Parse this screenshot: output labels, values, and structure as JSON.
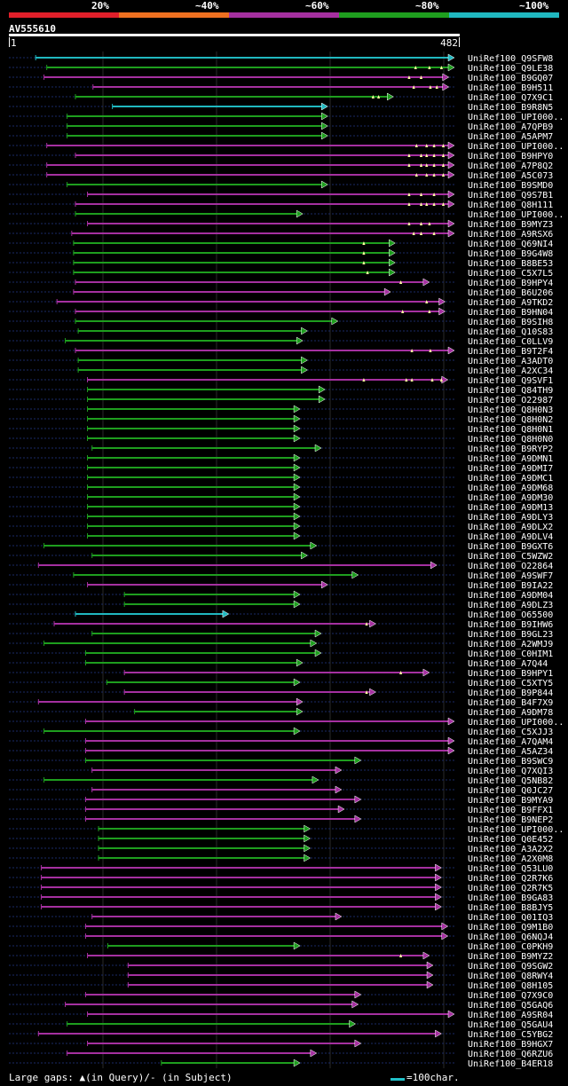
{
  "legend": {
    "items": [
      {
        "label": "20%",
        "color": "#e01f2a"
      },
      {
        "label": "~40%",
        "color": "#ee7020"
      },
      {
        "label": "~60%",
        "color": "#a530a0"
      },
      {
        "label": "~80%",
        "color": "#1e9e1e"
      },
      {
        "label": "~100%",
        "color": "#20b8c0"
      }
    ]
  },
  "query": {
    "name": "AV555610",
    "start": "1",
    "end": "482"
  },
  "footer": {
    "gaps_text": "Large gaps: ▲(in Query)/- (in Subject)",
    "scale_text": "=100char."
  },
  "chart_data": {
    "type": "alignment-hits",
    "query_length": 482,
    "color_by_identity": {
      "~40%": "#ee7020",
      "~60%": "#a530a0",
      "~80%": "#1e9e1e",
      "~100%": "#20b8c0"
    },
    "hits": [
      {
        "name": "UniRef100_Q9SFW8",
        "start": 29,
        "end": 482,
        "id": "~100%",
        "gaps": []
      },
      {
        "name": "UniRef100_Q9LE38",
        "start": 41,
        "end": 482,
        "id": "~80%",
        "gaps": [
          440,
          455,
          468
        ]
      },
      {
        "name": "UniRef100_B9GQ07",
        "start": 38,
        "end": 476,
        "id": "~60%",
        "gaps": [
          433,
          446
        ]
      },
      {
        "name": "UniRef100_B9H511",
        "start": 91,
        "end": 476,
        "id": "~60%",
        "gaps": [
          438,
          456,
          463
        ]
      },
      {
        "name": "UniRef100_Q7X9C1",
        "start": 72,
        "end": 416,
        "id": "~80%",
        "gaps": [
          394,
          400
        ]
      },
      {
        "name": "UniRef100_B9R8N5",
        "start": 112,
        "end": 345,
        "id": "~100%",
        "gaps": []
      },
      {
        "name": "UniRef100_UPI000..",
        "start": 63,
        "end": 345,
        "id": "~80%",
        "gaps": []
      },
      {
        "name": "UniRef100_A7QPB9",
        "start": 63,
        "end": 345,
        "id": "~80%",
        "gaps": []
      },
      {
        "name": "UniRef100_A5APM7",
        "start": 63,
        "end": 345,
        "id": "~80%",
        "gaps": []
      },
      {
        "name": "UniRef100_UPI000..",
        "start": 41,
        "end": 482,
        "id": "~60%",
        "gaps": [
          441,
          452,
          460,
          470
        ]
      },
      {
        "name": "UniRef100_B9HPY0",
        "start": 72,
        "end": 482,
        "id": "~60%",
        "gaps": [
          433,
          446,
          452,
          460,
          470
        ]
      },
      {
        "name": "UniRef100_A7P8Q2",
        "start": 41,
        "end": 482,
        "id": "~60%",
        "gaps": [
          433,
          446,
          452,
          460,
          470
        ]
      },
      {
        "name": "UniRef100_A5C073",
        "start": 41,
        "end": 482,
        "id": "~60%",
        "gaps": [
          441,
          452,
          460,
          470
        ]
      },
      {
        "name": "UniRef100_B9SMD0",
        "start": 63,
        "end": 345,
        "id": "~80%",
        "gaps": []
      },
      {
        "name": "UniRef100_Q9S7B1",
        "start": 85,
        "end": 482,
        "id": "~60%",
        "gaps": [
          433,
          446,
          460
        ]
      },
      {
        "name": "UniRef100_Q8H111",
        "start": 72,
        "end": 482,
        "id": "~60%",
        "gaps": [
          433,
          446,
          452,
          460,
          470
        ]
      },
      {
        "name": "UniRef100_UPI000..",
        "start": 72,
        "end": 318,
        "id": "~80%",
        "gaps": []
      },
      {
        "name": "UniRef100_B9MYZ3",
        "start": 85,
        "end": 482,
        "id": "~60%",
        "gaps": [
          433,
          446,
          455
        ]
      },
      {
        "name": "UniRef100_A9RSX6",
        "start": 68,
        "end": 482,
        "id": "~60%",
        "gaps": [
          438,
          446,
          460
        ]
      },
      {
        "name": "UniRef100_Q69NI4",
        "start": 70,
        "end": 418,
        "id": "~80%",
        "gaps": [
          384
        ]
      },
      {
        "name": "UniRef100_B9G4W8",
        "start": 70,
        "end": 418,
        "id": "~80%",
        "gaps": [
          384
        ]
      },
      {
        "name": "UniRef100_B8BE53",
        "start": 70,
        "end": 418,
        "id": "~80%",
        "gaps": [
          384
        ]
      },
      {
        "name": "UniRef100_C5X7L5",
        "start": 70,
        "end": 418,
        "id": "~80%",
        "gaps": [
          388
        ]
      },
      {
        "name": "UniRef100_B9HPY4",
        "start": 72,
        "end": 455,
        "id": "~60%",
        "gaps": [
          424
        ]
      },
      {
        "name": "UniRef100_B6U206",
        "start": 70,
        "end": 413,
        "id": "~60%",
        "gaps": []
      },
      {
        "name": "UniRef100_A9TKD2",
        "start": 52,
        "end": 472,
        "id": "~60%",
        "gaps": [
          452
        ]
      },
      {
        "name": "UniRef100_B9HN04",
        "start": 72,
        "end": 472,
        "id": "~60%",
        "gaps": [
          426,
          455
        ]
      },
      {
        "name": "UniRef100_B9SIH8",
        "start": 72,
        "end": 356,
        "id": "~80%",
        "gaps": []
      },
      {
        "name": "UniRef100_Q10S83",
        "start": 75,
        "end": 323,
        "id": "~80%",
        "gaps": []
      },
      {
        "name": "UniRef100_C0LLV9",
        "start": 61,
        "end": 318,
        "id": "~80%",
        "gaps": []
      },
      {
        "name": "UniRef100_B9T2F4",
        "start": 72,
        "end": 482,
        "id": "~60%",
        "gaps": [
          436,
          456
        ]
      },
      {
        "name": "UniRef100_A3ADT0",
        "start": 75,
        "end": 323,
        "id": "~80%",
        "gaps": []
      },
      {
        "name": "UniRef100_A2XC34",
        "start": 75,
        "end": 323,
        "id": "~80%",
        "gaps": []
      },
      {
        "name": "UniRef100_Q9SVF1",
        "start": 85,
        "end": 475,
        "id": "~60%",
        "gaps": [
          384,
          430,
          436,
          458,
          468
        ]
      },
      {
        "name": "UniRef100_Q84TH9",
        "start": 85,
        "end": 342,
        "id": "~80%",
        "gaps": []
      },
      {
        "name": "UniRef100_O22987",
        "start": 85,
        "end": 342,
        "id": "~80%",
        "gaps": []
      },
      {
        "name": "UniRef100_Q8H0N3",
        "start": 85,
        "end": 315,
        "id": "~80%",
        "gaps": []
      },
      {
        "name": "UniRef100_Q8H0N2",
        "start": 85,
        "end": 315,
        "id": "~80%",
        "gaps": []
      },
      {
        "name": "UniRef100_Q8H0N1",
        "start": 85,
        "end": 315,
        "id": "~80%",
        "gaps": []
      },
      {
        "name": "UniRef100_Q8H0N0",
        "start": 85,
        "end": 315,
        "id": "~80%",
        "gaps": []
      },
      {
        "name": "UniRef100_B9RYP2",
        "start": 90,
        "end": 338,
        "id": "~80%",
        "gaps": []
      },
      {
        "name": "UniRef100_A9DMN1",
        "start": 85,
        "end": 315,
        "id": "~80%",
        "gaps": []
      },
      {
        "name": "UniRef100_A9DMI7",
        "start": 85,
        "end": 315,
        "id": "~80%",
        "gaps": []
      },
      {
        "name": "UniRef100_A9DMC1",
        "start": 85,
        "end": 315,
        "id": "~80%",
        "gaps": []
      },
      {
        "name": "UniRef100_A9DM68",
        "start": 85,
        "end": 315,
        "id": "~80%",
        "gaps": []
      },
      {
        "name": "UniRef100_A9DM30",
        "start": 85,
        "end": 315,
        "id": "~80%",
        "gaps": []
      },
      {
        "name": "UniRef100_A9DM13",
        "start": 85,
        "end": 315,
        "id": "~80%",
        "gaps": []
      },
      {
        "name": "UniRef100_A9DLY3",
        "start": 85,
        "end": 315,
        "id": "~80%",
        "gaps": []
      },
      {
        "name": "UniRef100_A9DLX2",
        "start": 85,
        "end": 315,
        "id": "~80%",
        "gaps": []
      },
      {
        "name": "UniRef100_A9DLV4",
        "start": 85,
        "end": 315,
        "id": "~80%",
        "gaps": []
      },
      {
        "name": "UniRef100_B9GXT6",
        "start": 38,
        "end": 333,
        "id": "~80%",
        "gaps": []
      },
      {
        "name": "UniRef100_C5WZW2",
        "start": 90,
        "end": 323,
        "id": "~80%",
        "gaps": []
      },
      {
        "name": "UniRef100_O22864",
        "start": 32,
        "end": 463,
        "id": "~60%",
        "gaps": []
      },
      {
        "name": "UniRef100_A9SWF7",
        "start": 70,
        "end": 378,
        "id": "~80%",
        "gaps": []
      },
      {
        "name": "UniRef100_B9IA22",
        "start": 85,
        "end": 345,
        "id": "~60%",
        "gaps": []
      },
      {
        "name": "UniRef100_A9DM04",
        "start": 125,
        "end": 315,
        "id": "~80%",
        "gaps": []
      },
      {
        "name": "UniRef100_A9DLZ3",
        "start": 125,
        "end": 315,
        "id": "~80%",
        "gaps": []
      },
      {
        "name": "UniRef100_O65500",
        "start": 72,
        "end": 238,
        "id": "~100%",
        "gaps": []
      },
      {
        "name": "UniRef100_B9IHW6",
        "start": 49,
        "end": 397,
        "id": "~60%",
        "gaps": [
          387
        ]
      },
      {
        "name": "UniRef100_B9GL23",
        "start": 90,
        "end": 338,
        "id": "~80%",
        "gaps": []
      },
      {
        "name": "UniRef100_A2WMJ9",
        "start": 38,
        "end": 333,
        "id": "~80%",
        "gaps": []
      },
      {
        "name": "UniRef100_C0HIM1",
        "start": 83,
        "end": 338,
        "id": "~80%",
        "gaps": []
      },
      {
        "name": "UniRef100_A7Q44",
        "start": 83,
        "end": 318,
        "id": "~80%",
        "gaps": []
      },
      {
        "name": "UniRef100_B9HPY1",
        "start": 125,
        "end": 455,
        "id": "~60%",
        "gaps": [
          424
        ]
      },
      {
        "name": "UniRef100_C5XTY5",
        "start": 106,
        "end": 315,
        "id": "~80%",
        "gaps": []
      },
      {
        "name": "UniRef100_B9P844",
        "start": 125,
        "end": 397,
        "id": "~60%",
        "gaps": [
          387
        ]
      },
      {
        "name": "UniRef100_B4F7X9",
        "start": 32,
        "end": 318,
        "id": "~60%",
        "gaps": []
      },
      {
        "name": "UniRef100_A9DM78",
        "start": 136,
        "end": 318,
        "id": "~80%",
        "gaps": []
      },
      {
        "name": "UniRef100_UPI000..",
        "start": 83,
        "end": 482,
        "id": "~60%",
        "gaps": []
      },
      {
        "name": "UniRef100_C5XJJ3",
        "start": 38,
        "end": 315,
        "id": "~80%",
        "gaps": []
      },
      {
        "name": "UniRef100_A7QAM4",
        "start": 83,
        "end": 482,
        "id": "~60%",
        "gaps": []
      },
      {
        "name": "UniRef100_A5AZ34",
        "start": 83,
        "end": 482,
        "id": "~60%",
        "gaps": []
      },
      {
        "name": "UniRef100_B9SWC9",
        "start": 83,
        "end": 381,
        "id": "~80%",
        "gaps": []
      },
      {
        "name": "UniRef100_Q7XQI3",
        "start": 90,
        "end": 360,
        "id": "~60%",
        "gaps": []
      },
      {
        "name": "UniRef100_Q5NB82",
        "start": 38,
        "end": 335,
        "id": "~80%",
        "gaps": []
      },
      {
        "name": "UniRef100_Q0JC27",
        "start": 90,
        "end": 360,
        "id": "~60%",
        "gaps": []
      },
      {
        "name": "UniRef100_B9MYA9",
        "start": 83,
        "end": 381,
        "id": "~60%",
        "gaps": []
      },
      {
        "name": "UniRef100_B9FFX1",
        "start": 83,
        "end": 363,
        "id": "~60%",
        "gaps": []
      },
      {
        "name": "UniRef100_B9NEP2",
        "start": 83,
        "end": 381,
        "id": "~60%",
        "gaps": []
      },
      {
        "name": "UniRef100_UPI000..",
        "start": 97,
        "end": 326,
        "id": "~80%",
        "gaps": []
      },
      {
        "name": "UniRef100_Q0E452",
        "start": 97,
        "end": 326,
        "id": "~80%",
        "gaps": []
      },
      {
        "name": "UniRef100_A3A2X2",
        "start": 97,
        "end": 326,
        "id": "~80%",
        "gaps": []
      },
      {
        "name": "UniRef100_A2X0M8",
        "start": 97,
        "end": 326,
        "id": "~80%",
        "gaps": []
      },
      {
        "name": "UniRef100_Q53LU0",
        "start": 35,
        "end": 468,
        "id": "~60%",
        "gaps": []
      },
      {
        "name": "UniRef100_Q2R7K6",
        "start": 35,
        "end": 468,
        "id": "~60%",
        "gaps": []
      },
      {
        "name": "UniRef100_Q2R7K5",
        "start": 35,
        "end": 468,
        "id": "~60%",
        "gaps": []
      },
      {
        "name": "UniRef100_B9GA83",
        "start": 35,
        "end": 468,
        "id": "~60%",
        "gaps": []
      },
      {
        "name": "UniRef100_B8BJY5",
        "start": 35,
        "end": 468,
        "id": "~60%",
        "gaps": []
      },
      {
        "name": "UniRef100_Q01IQ3",
        "start": 90,
        "end": 360,
        "id": "~60%",
        "gaps": []
      },
      {
        "name": "UniRef100_Q9M1B0",
        "start": 83,
        "end": 475,
        "id": "~60%",
        "gaps": []
      },
      {
        "name": "UniRef100_Q6NQJ4",
        "start": 83,
        "end": 475,
        "id": "~60%",
        "gaps": []
      },
      {
        "name": "UniRef100_C0PKH9",
        "start": 107,
        "end": 315,
        "id": "~80%",
        "gaps": []
      },
      {
        "name": "UniRef100_B9MYZ2",
        "start": 85,
        "end": 455,
        "id": "~60%",
        "gaps": [
          424
        ]
      },
      {
        "name": "UniRef100_Q9SGW2",
        "start": 129,
        "end": 459,
        "id": "~60%",
        "gaps": []
      },
      {
        "name": "UniRef100_Q8RWY4",
        "start": 129,
        "end": 459,
        "id": "~60%",
        "gaps": []
      },
      {
        "name": "UniRef100_Q8H105",
        "start": 129,
        "end": 459,
        "id": "~60%",
        "gaps": []
      },
      {
        "name": "UniRef100_Q7X9C0",
        "start": 83,
        "end": 381,
        "id": "~60%",
        "gaps": []
      },
      {
        "name": "UniRef100_Q5GAQ6",
        "start": 61,
        "end": 378,
        "id": "~60%",
        "gaps": []
      },
      {
        "name": "UniRef100_A9SR04",
        "start": 85,
        "end": 482,
        "id": "~60%",
        "gaps": []
      },
      {
        "name": "UniRef100_Q5GAU4",
        "start": 63,
        "end": 375,
        "id": "~80%",
        "gaps": []
      },
      {
        "name": "UniRef100_C5YBG2",
        "start": 32,
        "end": 468,
        "id": "~60%",
        "gaps": []
      },
      {
        "name": "UniRef100_B9HGX7",
        "start": 85,
        "end": 381,
        "id": "~60%",
        "gaps": []
      },
      {
        "name": "UniRef100_Q6RZU6",
        "start": 63,
        "end": 333,
        "id": "~60%",
        "gaps": []
      },
      {
        "name": "UniRef100_B4ER18",
        "start": 165,
        "end": 315,
        "id": "~80%",
        "gaps": []
      }
    ]
  }
}
